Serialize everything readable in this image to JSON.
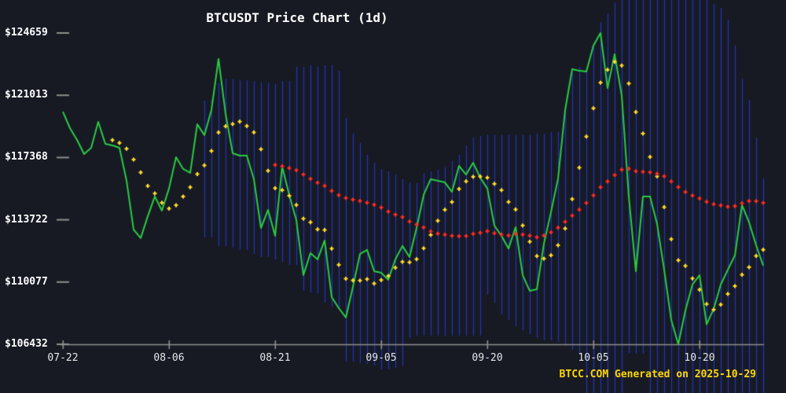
{
  "title": "BTCUSDT Price Chart (1d)",
  "footer": "BTCC.COM Generated on 2025-10-29",
  "colors": {
    "background": "#171a23",
    "close_line": "#2bcb45",
    "ma7_dots": "#ffdc32",
    "ma30_dots": "#ff2b2b",
    "range_bars": "#2333b3",
    "axis": "#8f8f8f",
    "price_label_text": "#ffffff",
    "date_label_text": "#e6e6e6",
    "title_text": "#ffffff",
    "footer_text": "#ffd700"
  },
  "chart_data": {
    "type": "line",
    "title": "BTCUSDT Price Chart (1d)",
    "xlabel": "",
    "ylabel": "",
    "ylim": [
      106432,
      124659
    ],
    "grid": false,
    "legend": "none",
    "num_points": 100,
    "y_ticks": [
      {
        "value": 124659,
        "label": "$124659"
      },
      {
        "value": 121013,
        "label": "$121013"
      },
      {
        "value": 117368,
        "label": "$117368"
      },
      {
        "value": 113722,
        "label": "$113722"
      },
      {
        "value": 110077,
        "label": "$110077"
      },
      {
        "value": 106432,
        "label": "$106432"
      }
    ],
    "x_ticks": [
      {
        "index": 0,
        "label": "07-22"
      },
      {
        "index": 15,
        "label": "08-06"
      },
      {
        "index": 30,
        "label": "08-21"
      },
      {
        "index": 45,
        "label": "09-05"
      },
      {
        "index": 60,
        "label": "09-20"
      },
      {
        "index": 75,
        "label": "10-05"
      },
      {
        "index": 90,
        "label": "10-20"
      }
    ],
    "close": [
      120050,
      119090,
      118400,
      117570,
      117940,
      119460,
      118170,
      118080,
      117940,
      116010,
      113150,
      112650,
      113930,
      115090,
      114260,
      115550,
      117390,
      116700,
      116470,
      119320,
      118680,
      120150,
      123140,
      119920,
      117620,
      117480,
      117480,
      116100,
      113240,
      114300,
      112780,
      116830,
      115180,
      113700,
      110480,
      111770,
      111400,
      112510,
      109190,
      108550,
      108000,
      109790,
      111720,
      111960,
      110710,
      110620,
      110210,
      111400,
      112190,
      111540,
      113240,
      115180,
      116100,
      116010,
      115910,
      115360,
      116880,
      116370,
      117060,
      116190,
      115550,
      113380,
      112780,
      112040,
      113290,
      110480,
      109560,
      109650,
      112320,
      114170,
      116140,
      120150,
      122540,
      122450,
      122400,
      123920,
      124659,
      121430,
      123420,
      121000,
      115080,
      110710,
      115090,
      115090,
      113470,
      110800,
      107860,
      106432,
      108410,
      109930,
      110480,
      107600,
      108500,
      109930,
      110800,
      111630,
      114580,
      113570,
      112230,
      111040
    ],
    "moving_average_series": [
      {
        "name": "MA7",
        "style": "dots",
        "color_key": "ma7_dots",
        "period": 7,
        "start_index": 7
      },
      {
        "name": "MA30",
        "style": "dots",
        "color_key": "ma30_dots",
        "period": 30,
        "start_index": 30
      }
    ],
    "range_bars": {
      "style": "vertical_lines",
      "color_key": "range_bars",
      "start_index": 20,
      "note": "values may extend beyond ylim; clipped at image edges",
      "top": [
        120700,
        120750,
        121760,
        121990,
        121990,
        121900,
        121900,
        121850,
        121760,
        121760,
        121670,
        121850,
        121850,
        122680,
        122680,
        122770,
        122680,
        122770,
        122770,
        122450,
        119690,
        118770,
        118220,
        117530,
        117070,
        116700,
        116560,
        116380,
        116100,
        115920,
        115870,
        116470,
        116560,
        116650,
        116790,
        117160,
        117530,
        118080,
        118540,
        118630,
        118700,
        118700,
        118700,
        118700,
        118700,
        118700,
        118700,
        118770,
        118770,
        118860,
        118860,
        120150,
        122360,
        122680,
        122680,
        124060,
        125300,
        125810,
        126450,
        126590,
        126590,
        126590,
        126590,
        126590,
        126590,
        126590,
        126590,
        126590,
        126590,
        126590,
        126590,
        126590,
        126360,
        126130,
        125440,
        123920,
        121990,
        120750,
        118540,
        116150
      ],
      "bottom": [
        112690,
        112690,
        112180,
        112180,
        112090,
        112000,
        111950,
        111720,
        111540,
        111540,
        111400,
        111260,
        111080,
        111080,
        109560,
        109470,
        109420,
        108870,
        108640,
        108500,
        105420,
        105420,
        105330,
        105280,
        105190,
        104960,
        104960,
        105050,
        105190,
        106800,
        106940,
        106940,
        106940,
        106940,
        106940,
        106940,
        106940,
        106940,
        106940,
        106940,
        109330,
        108870,
        108180,
        107860,
        107490,
        107260,
        107030,
        106800,
        106660,
        106660,
        106570,
        106340,
        106110,
        105880,
        103580,
        103580,
        103580,
        103580,
        103580,
        103580,
        105880,
        105880,
        105880,
        103580,
        103580,
        103580,
        103580,
        103580,
        103580,
        103580,
        103580,
        103580,
        103580,
        103580,
        103580,
        103580,
        103580,
        103580,
        103580,
        103580
      ]
    }
  }
}
